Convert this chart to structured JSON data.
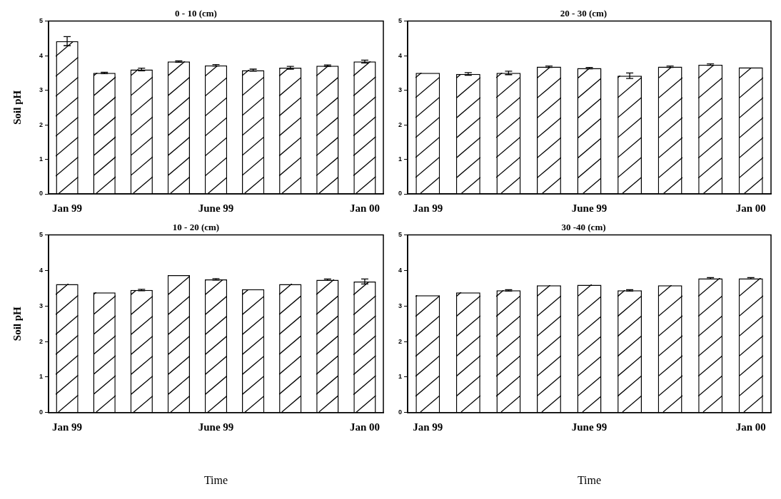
{
  "chart_data": [
    {
      "type": "bar",
      "title": "0 - 10 (cm)",
      "ylabel": "Soil pH",
      "categories": [
        "Jan 99",
        null,
        null,
        null,
        "June 99",
        null,
        null,
        null,
        "Jan 00"
      ],
      "values": [
        4.42,
        3.5,
        3.6,
        3.83,
        3.72,
        3.58,
        3.65,
        3.71,
        3.83
      ],
      "errors": [
        0.13,
        0.02,
        0.04,
        0.02,
        0.02,
        0.03,
        0.04,
        0.02,
        0.04
      ],
      "color": "#ffffff",
      "ylim": [
        0,
        5
      ],
      "yticks": [
        0,
        1,
        2,
        3,
        4,
        5
      ],
      "grid": false
    },
    {
      "type": "bar",
      "title": "20 - 30 (cm)",
      "categories": [
        "Jan 99",
        null,
        null,
        null,
        "June 99",
        null,
        null,
        null,
        "Jan 00"
      ],
      "values": [
        3.5,
        3.47,
        3.5,
        3.68,
        3.64,
        3.42,
        3.68,
        3.74,
        3.66
      ],
      "errors": [
        null,
        0.04,
        0.05,
        0.02,
        0.02,
        0.08,
        0.02,
        0.02,
        null
      ],
      "color": "#ffffff",
      "ylim": [
        0,
        5
      ],
      "yticks": [
        0,
        1,
        2,
        3,
        4,
        5
      ],
      "grid": false
    },
    {
      "type": "bar",
      "title": "10 - 20 (cm)",
      "ylabel": "Soil pH",
      "xlabel": "Time",
      "categories": [
        "Jan 99",
        null,
        null,
        null,
        "June 99",
        null,
        null,
        null,
        "Jan 00"
      ],
      "values": [
        3.62,
        3.38,
        3.45,
        3.87,
        3.75,
        3.47,
        3.62,
        3.74,
        3.69
      ],
      "errors": [
        null,
        null,
        0.02,
        null,
        0.02,
        null,
        null,
        0.02,
        0.07
      ],
      "color": "#ffffff",
      "ylim": [
        0,
        5
      ],
      "yticks": [
        0,
        1,
        2,
        3,
        4,
        5
      ],
      "grid": false
    },
    {
      "type": "bar",
      "title": "30 -40 (cm)",
      "xlabel": "Time",
      "categories": [
        "Jan 99",
        null,
        null,
        null,
        "June 99",
        null,
        null,
        null,
        "Jan 00"
      ],
      "values": [
        3.3,
        3.38,
        3.44,
        3.58,
        3.6,
        3.44,
        3.58,
        3.78,
        3.78
      ],
      "errors": [
        null,
        null,
        0.02,
        null,
        null,
        0.02,
        null,
        0.02,
        0.02
      ],
      "color": "#ffffff",
      "ylim": [
        0,
        5
      ],
      "yticks": [
        0,
        1,
        2,
        3,
        4,
        5
      ],
      "grid": false
    }
  ]
}
